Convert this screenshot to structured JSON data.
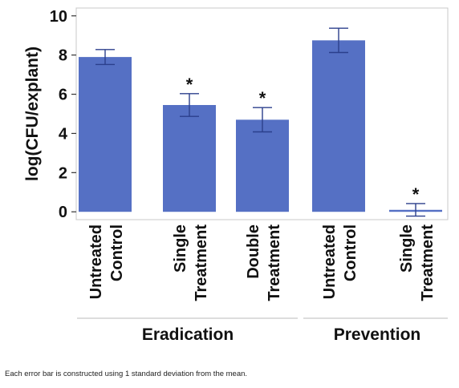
{
  "chart_data": {
    "type": "bar",
    "ylabel": "log(CFU/explant)",
    "ylim": [
      -0.4,
      10.4
    ],
    "yticks": [
      0,
      2,
      4,
      6,
      8,
      10
    ],
    "grid": false,
    "bar_color": "#5570c4",
    "bars": [
      {
        "label_line1": "Untreated",
        "label_line2": "Control",
        "value": 7.9,
        "error": 0.38,
        "significant": false,
        "sig_mark": ""
      },
      {
        "label_line1": "Single",
        "label_line2": "Treatment",
        "value": 5.45,
        "error": 0.58,
        "significant": true,
        "sig_mark": "*"
      },
      {
        "label_line1": "Double",
        "label_line2": "Treatment",
        "value": 4.7,
        "error": 0.62,
        "significant": true,
        "sig_mark": "*"
      },
      {
        "label_line1": "Untreated",
        "label_line2": "Control",
        "value": 8.75,
        "error": 0.62,
        "significant": false,
        "sig_mark": ""
      },
      {
        "label_line1": "Single",
        "label_line2": "Treatment",
        "value": 0.1,
        "error": 0.32,
        "significant": true,
        "sig_mark": "*"
      }
    ],
    "groups": [
      {
        "label": "Eradication",
        "bars": [
          0,
          1,
          2
        ]
      },
      {
        "label": "Prevention",
        "bars": [
          3,
          4
        ]
      }
    ]
  },
  "footnote": "Each error bar is constructed using 1 standard deviation from the mean."
}
